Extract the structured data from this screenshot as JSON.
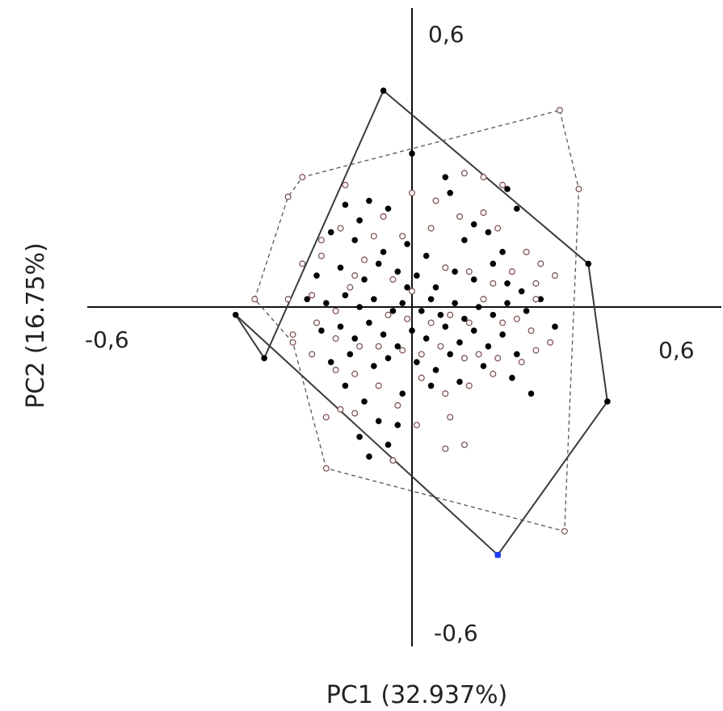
{
  "chart_data": {
    "type": "scatter",
    "title": "",
    "xlabel": "PC1 (32.937%)",
    "ylabel": "PC2 (16.75%)",
    "xlim": [
      -0.6,
      0.6
    ],
    "ylim": [
      -0.6,
      0.6
    ],
    "grid": false,
    "tick_labels": {
      "x_neg": "-0,6",
      "x_pos": "0,6",
      "y_pos": "0,6",
      "y_neg": "-0,6"
    },
    "colors": {
      "axis": "#111111",
      "filled_point": "#000000",
      "open_point_stroke": "#7a4a4a",
      "highlight_point": "#1a3cff"
    },
    "series": [
      {
        "marker": "filled-circle",
        "hull_style": "solid",
        "hull": [
          [
            -0.06,
            0.55
          ],
          [
            0.37,
            0.11
          ],
          [
            0.41,
            -0.24
          ],
          [
            0.18,
            -0.63
          ],
          [
            -0.37,
            -0.02
          ],
          [
            -0.31,
            -0.13
          ]
        ],
        "points": [
          [
            -0.14,
            0.26
          ],
          [
            -0.11,
            0.22
          ],
          [
            -0.09,
            0.27
          ],
          [
            -0.05,
            0.25
          ],
          [
            0.08,
            0.29
          ],
          [
            0.13,
            0.21
          ],
          [
            0.2,
            0.3
          ],
          [
            0.22,
            0.25
          ],
          [
            -0.17,
            0.19
          ],
          [
            -0.12,
            0.17
          ],
          [
            -0.06,
            0.14
          ],
          [
            -0.01,
            0.16
          ],
          [
            0.03,
            0.13
          ],
          [
            0.11,
            0.17
          ],
          [
            0.16,
            0.19
          ],
          [
            0.19,
            0.14
          ],
          [
            -0.2,
            0.08
          ],
          [
            -0.15,
            0.1
          ],
          [
            -0.1,
            0.07
          ],
          [
            -0.07,
            0.11
          ],
          [
            -0.03,
            0.09
          ],
          [
            0.01,
            0.08
          ],
          [
            0.05,
            0.05
          ],
          [
            0.09,
            0.09
          ],
          [
            0.13,
            0.07
          ],
          [
            0.17,
            0.11
          ],
          [
            0.2,
            0.06
          ],
          [
            0.23,
            0.04
          ],
          [
            -0.22,
            0.02
          ],
          [
            -0.18,
            0.01
          ],
          [
            -0.14,
            0.03
          ],
          [
            -0.11,
            0.0
          ],
          [
            -0.08,
            0.02
          ],
          [
            -0.04,
            -0.01
          ],
          [
            -0.02,
            0.01
          ],
          [
            0.02,
            -0.01
          ],
          [
            0.04,
            0.02
          ],
          [
            0.06,
            -0.02
          ],
          [
            0.09,
            0.01
          ],
          [
            0.11,
            -0.03
          ],
          [
            0.14,
            0.0
          ],
          [
            0.17,
            -0.02
          ],
          [
            0.2,
            0.01
          ],
          [
            0.24,
            -0.01
          ],
          [
            0.27,
            0.02
          ],
          [
            0.3,
            -0.05
          ],
          [
            -0.19,
            -0.06
          ],
          [
            -0.15,
            -0.05
          ],
          [
            -0.12,
            -0.08
          ],
          [
            -0.09,
            -0.04
          ],
          [
            -0.06,
            -0.07
          ],
          [
            -0.03,
            -0.1
          ],
          [
            0.0,
            -0.06
          ],
          [
            0.03,
            -0.08
          ],
          [
            0.07,
            -0.05
          ],
          [
            0.1,
            -0.09
          ],
          [
            0.13,
            -0.06
          ],
          [
            0.16,
            -0.1
          ],
          [
            0.19,
            -0.07
          ],
          [
            0.22,
            -0.12
          ],
          [
            -0.17,
            -0.14
          ],
          [
            -0.13,
            -0.12
          ],
          [
            -0.08,
            -0.15
          ],
          [
            -0.05,
            -0.13
          ],
          [
            0.01,
            -0.14
          ],
          [
            0.05,
            -0.16
          ],
          [
            0.08,
            -0.12
          ],
          [
            0.15,
            -0.15
          ],
          [
            0.21,
            -0.18
          ],
          [
            -0.14,
            -0.2
          ],
          [
            -0.1,
            -0.24
          ],
          [
            -0.02,
            -0.22
          ],
          [
            0.04,
            -0.2
          ],
          [
            0.1,
            -0.19
          ],
          [
            0.25,
            -0.22
          ],
          [
            -0.07,
            -0.29
          ],
          [
            -0.03,
            -0.3
          ],
          [
            -0.11,
            -0.33
          ],
          [
            -0.05,
            -0.35
          ],
          [
            -0.09,
            -0.38
          ],
          [
            0.0,
            0.39
          ],
          [
            0.07,
            0.33
          ],
          [
            -0.01,
            0.05
          ]
        ]
      },
      {
        "marker": "open-circle",
        "hull_style": "dashed",
        "hull": [
          [
            0.31,
            0.5
          ],
          [
            0.35,
            0.3
          ],
          [
            0.32,
            -0.57
          ],
          [
            -0.18,
            -0.41
          ],
          [
            -0.25,
            -0.09
          ],
          [
            -0.33,
            0.02
          ],
          [
            -0.26,
            0.28
          ],
          [
            -0.23,
            0.33
          ]
        ],
        "points": [
          [
            -0.14,
            0.31
          ],
          [
            0.0,
            0.29
          ],
          [
            0.05,
            0.27
          ],
          [
            0.11,
            0.34
          ],
          [
            0.15,
            0.33
          ],
          [
            0.19,
            0.31
          ],
          [
            -0.06,
            0.23
          ],
          [
            -0.19,
            0.17
          ],
          [
            -0.15,
            0.2
          ],
          [
            -0.1,
            0.12
          ],
          [
            -0.08,
            0.18
          ],
          [
            -0.02,
            0.18
          ],
          [
            0.04,
            0.2
          ],
          [
            0.1,
            0.23
          ],
          [
            0.15,
            0.24
          ],
          [
            0.18,
            0.2
          ],
          [
            0.24,
            0.14
          ],
          [
            0.27,
            0.11
          ],
          [
            -0.23,
            0.11
          ],
          [
            -0.19,
            0.13
          ],
          [
            -0.12,
            0.08
          ],
          [
            -0.04,
            0.07
          ],
          [
            0.0,
            0.04
          ],
          [
            0.07,
            0.1
          ],
          [
            0.12,
            0.09
          ],
          [
            0.17,
            0.06
          ],
          [
            0.21,
            0.09
          ],
          [
            0.26,
            0.06
          ],
          [
            0.3,
            0.08
          ],
          [
            -0.26,
            0.02
          ],
          [
            -0.21,
            0.03
          ],
          [
            -0.16,
            -0.01
          ],
          [
            -0.13,
            0.05
          ],
          [
            -0.05,
            -0.02
          ],
          [
            -0.01,
            -0.03
          ],
          [
            0.04,
            -0.04
          ],
          [
            0.08,
            -0.02
          ],
          [
            0.12,
            -0.04
          ],
          [
            0.15,
            0.02
          ],
          [
            0.19,
            -0.04
          ],
          [
            0.22,
            -0.03
          ],
          [
            0.25,
            -0.06
          ],
          [
            0.29,
            -0.09
          ],
          [
            -0.25,
            -0.07
          ],
          [
            -0.2,
            -0.04
          ],
          [
            -0.16,
            -0.08
          ],
          [
            -0.11,
            -0.1
          ],
          [
            -0.07,
            -0.1
          ],
          [
            -0.02,
            -0.11
          ],
          [
            0.02,
            -0.12
          ],
          [
            0.06,
            -0.1
          ],
          [
            0.11,
            -0.13
          ],
          [
            0.14,
            -0.12
          ],
          [
            0.18,
            -0.13
          ],
          [
            0.23,
            -0.14
          ],
          [
            0.26,
            -0.11
          ],
          [
            -0.21,
            -0.12
          ],
          [
            -0.16,
            -0.16
          ],
          [
            -0.12,
            -0.17
          ],
          [
            -0.07,
            -0.2
          ],
          [
            0.02,
            -0.18
          ],
          [
            0.07,
            -0.22
          ],
          [
            0.12,
            -0.2
          ],
          [
            0.17,
            -0.17
          ],
          [
            -0.12,
            -0.27
          ],
          [
            -0.18,
            -0.28
          ],
          [
            -0.03,
            -0.25
          ],
          [
            0.01,
            -0.3
          ],
          [
            0.08,
            -0.28
          ],
          [
            -0.04,
            -0.39
          ],
          [
            0.07,
            -0.36
          ],
          [
            0.11,
            -0.35
          ],
          [
            -0.15,
            -0.26
          ],
          [
            0.26,
            0.02
          ]
        ]
      }
    ],
    "highlight_point": [
      0.18,
      -0.63
    ]
  }
}
